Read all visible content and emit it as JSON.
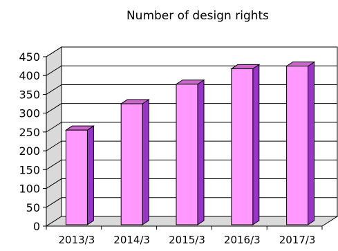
{
  "chart_data": {
    "type": "bar",
    "title": "Number of design rights",
    "categories": [
      "2013/3",
      "2014/3",
      "2015/3",
      "2016/3",
      "2017/3"
    ],
    "values": [
      255,
      325,
      377,
      418,
      425
    ],
    "xlabel": "",
    "ylabel": "",
    "ylim": [
      0,
      450
    ],
    "yticks": [
      0,
      50,
      100,
      150,
      200,
      250,
      300,
      350,
      400,
      450
    ],
    "grid": true,
    "legend": "none",
    "colors": {
      "bar_front": "#ff99ff",
      "bar_side": "#9933cc",
      "bar_top": "#cc66cc",
      "back_wall": "#ffffff",
      "side_wall": "#d9d9d9",
      "floor": "#d9d9d9",
      "grid": "#000000"
    }
  }
}
